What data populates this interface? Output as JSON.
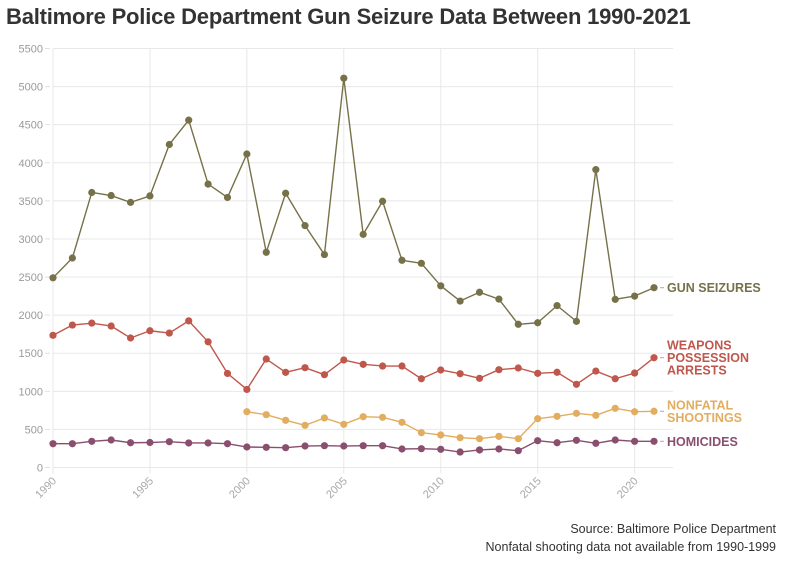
{
  "title": "Baltimore Police Department Gun Seizure Data Between 1990-2021",
  "source_lines": [
    "Source: Baltimore Police Department",
    "Nonfatal shooting data not available from 1990-1999"
  ],
  "chart_data": {
    "type": "line",
    "title": "Baltimore Police Department Gun Seizure Data Between 1990-2021",
    "xlabel": "",
    "ylabel": "",
    "xlim": [
      1990,
      2021
    ],
    "ylim": [
      0,
      5500
    ],
    "yticks": [
      0,
      500,
      1000,
      1500,
      2000,
      2500,
      3000,
      3500,
      4000,
      4500,
      5000,
      5500
    ],
    "xticks": [
      1990,
      1995,
      2000,
      2005,
      2010,
      2015,
      2020
    ],
    "grid": true,
    "legend": "direct-labels-right",
    "x": [
      1990,
      1991,
      1992,
      1993,
      1994,
      1995,
      1996,
      1997,
      1998,
      1999,
      2000,
      2001,
      2002,
      2003,
      2004,
      2005,
      2006,
      2007,
      2008,
      2009,
      2010,
      2011,
      2012,
      2013,
      2014,
      2015,
      2016,
      2017,
      2018,
      2019,
      2020,
      2021
    ],
    "series": [
      {
        "name": "GUN SEIZURES",
        "label_lines": [
          "GUN SEIZURES"
        ],
        "color": "#767148",
        "values": [
          2490,
          2750,
          3610,
          3570,
          3480,
          3565,
          4240,
          4560,
          3720,
          3545,
          4115,
          2825,
          3600,
          3175,
          2795,
          5110,
          3060,
          3495,
          2720,
          2680,
          2385,
          2185,
          2300,
          2210,
          1880,
          1900,
          2125,
          1918,
          3910,
          2207,
          2250,
          2360
        ]
      },
      {
        "name": "WEAPONS POSSESSION ARRESTS",
        "label_lines": [
          "WEAPONS",
          "POSSESSION",
          "ARRESTS"
        ],
        "color": "#c0574c",
        "values": [
          1735,
          1870,
          1895,
          1857,
          1700,
          1795,
          1765,
          1925,
          1650,
          1235,
          1025,
          1424,
          1249,
          1310,
          1218,
          1411,
          1354,
          1332,
          1332,
          1165,
          1280,
          1231,
          1171,
          1284,
          1306,
          1236,
          1250,
          1092,
          1266,
          1165,
          1240,
          1441
        ]
      },
      {
        "name": "NONFATAL SHOOTINGS",
        "label_lines": [
          "NONFATAL",
          "SHOOTINGS"
        ],
        "color": "#e2ad5f",
        "values": [
          null,
          null,
          null,
          null,
          null,
          null,
          null,
          null,
          null,
          null,
          732,
          693,
          619,
          554,
          650,
          567,
          667,
          659,
          593,
          457,
          427,
          391,
          378,
          409,
          378,
          641,
          672,
          711,
          685,
          777,
          732,
          738
        ]
      },
      {
        "name": "HOMICIDES",
        "label_lines": [
          "HOMICIDES"
        ],
        "color": "#8a4e6e",
        "values": [
          312,
          312,
          344,
          361,
          325,
          328,
          339,
          322,
          322,
          312,
          269,
          265,
          260,
          282,
          286,
          282,
          286,
          286,
          243,
          247,
          239,
          203,
          230,
          243,
          221,
          352,
          325,
          357,
          318,
          361,
          344,
          344
        ]
      }
    ]
  }
}
